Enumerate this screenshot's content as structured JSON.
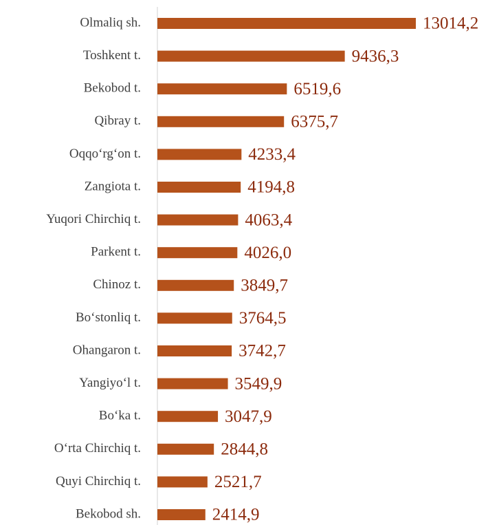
{
  "chart_data": {
    "type": "bar",
    "orientation": "horizontal",
    "color": "#b5521b",
    "categories": [
      "Olmaliq sh.",
      "Toshkent t.",
      "Bekobod t.",
      "Qibray t.",
      "Oqqo‘rg‘on t.",
      "Zangiota t.",
      "Yuqori Chirchiq t.",
      "Parkent t.",
      "Chinoz t.",
      "Bo‘stonliq t.",
      "Ohangaron t.",
      "Yangiyo‘l t.",
      "Bo‘ka t.",
      "O‘rta Chirchiq t.",
      "Quyi Chirchiq t.",
      "Bekobod sh."
    ],
    "values": [
      13014.2,
      9436.3,
      6519.6,
      6375.7,
      4233.4,
      4194.8,
      4063.4,
      4026.0,
      3849.7,
      3764.5,
      3742.7,
      3549.9,
      3047.9,
      2844.8,
      2521.7,
      2414.9
    ],
    "value_labels": [
      "13014,2",
      "9436,3",
      "6519,6",
      "6375,7",
      "4233,4",
      "4194,8",
      "4063,4",
      "4026,0",
      "3849,7",
      "3764,5",
      "3742,7",
      "3549,9",
      "3047,9",
      "2844,8",
      "2521,7",
      "2414,9"
    ]
  }
}
